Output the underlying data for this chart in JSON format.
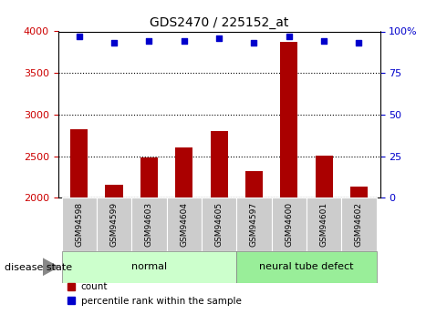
{
  "title": "GDS2470 / 225152_at",
  "samples": [
    "GSM94598",
    "GSM94599",
    "GSM94603",
    "GSM94604",
    "GSM94605",
    "GSM94597",
    "GSM94600",
    "GSM94601",
    "GSM94602"
  ],
  "counts": [
    2820,
    2160,
    2490,
    2610,
    2800,
    2320,
    3870,
    2510,
    2140
  ],
  "percentiles": [
    97,
    93,
    94,
    94,
    96,
    93,
    97,
    94,
    93
  ],
  "ylim_left": [
    2000,
    4000
  ],
  "ylim_right": [
    0,
    100
  ],
  "yticks_left": [
    2000,
    2500,
    3000,
    3500,
    4000
  ],
  "yticks_right": [
    0,
    25,
    50,
    75,
    100
  ],
  "bar_color": "#AA0000",
  "scatter_color": "#0000CC",
  "bar_width": 0.5,
  "groups": [
    {
      "label": "normal",
      "indices": [
        0,
        1,
        2,
        3,
        4
      ],
      "color": "#CCFFCC"
    },
    {
      "label": "neural tube defect",
      "indices": [
        5,
        6,
        7,
        8
      ],
      "color": "#99EE99"
    }
  ],
  "disease_state_label": "disease state",
  "grid_color": "#000000",
  "left_tick_color": "#CC0000",
  "right_tick_color": "#0000CC",
  "legend_count_label": "count",
  "legend_pct_label": "percentile rank within the sample"
}
